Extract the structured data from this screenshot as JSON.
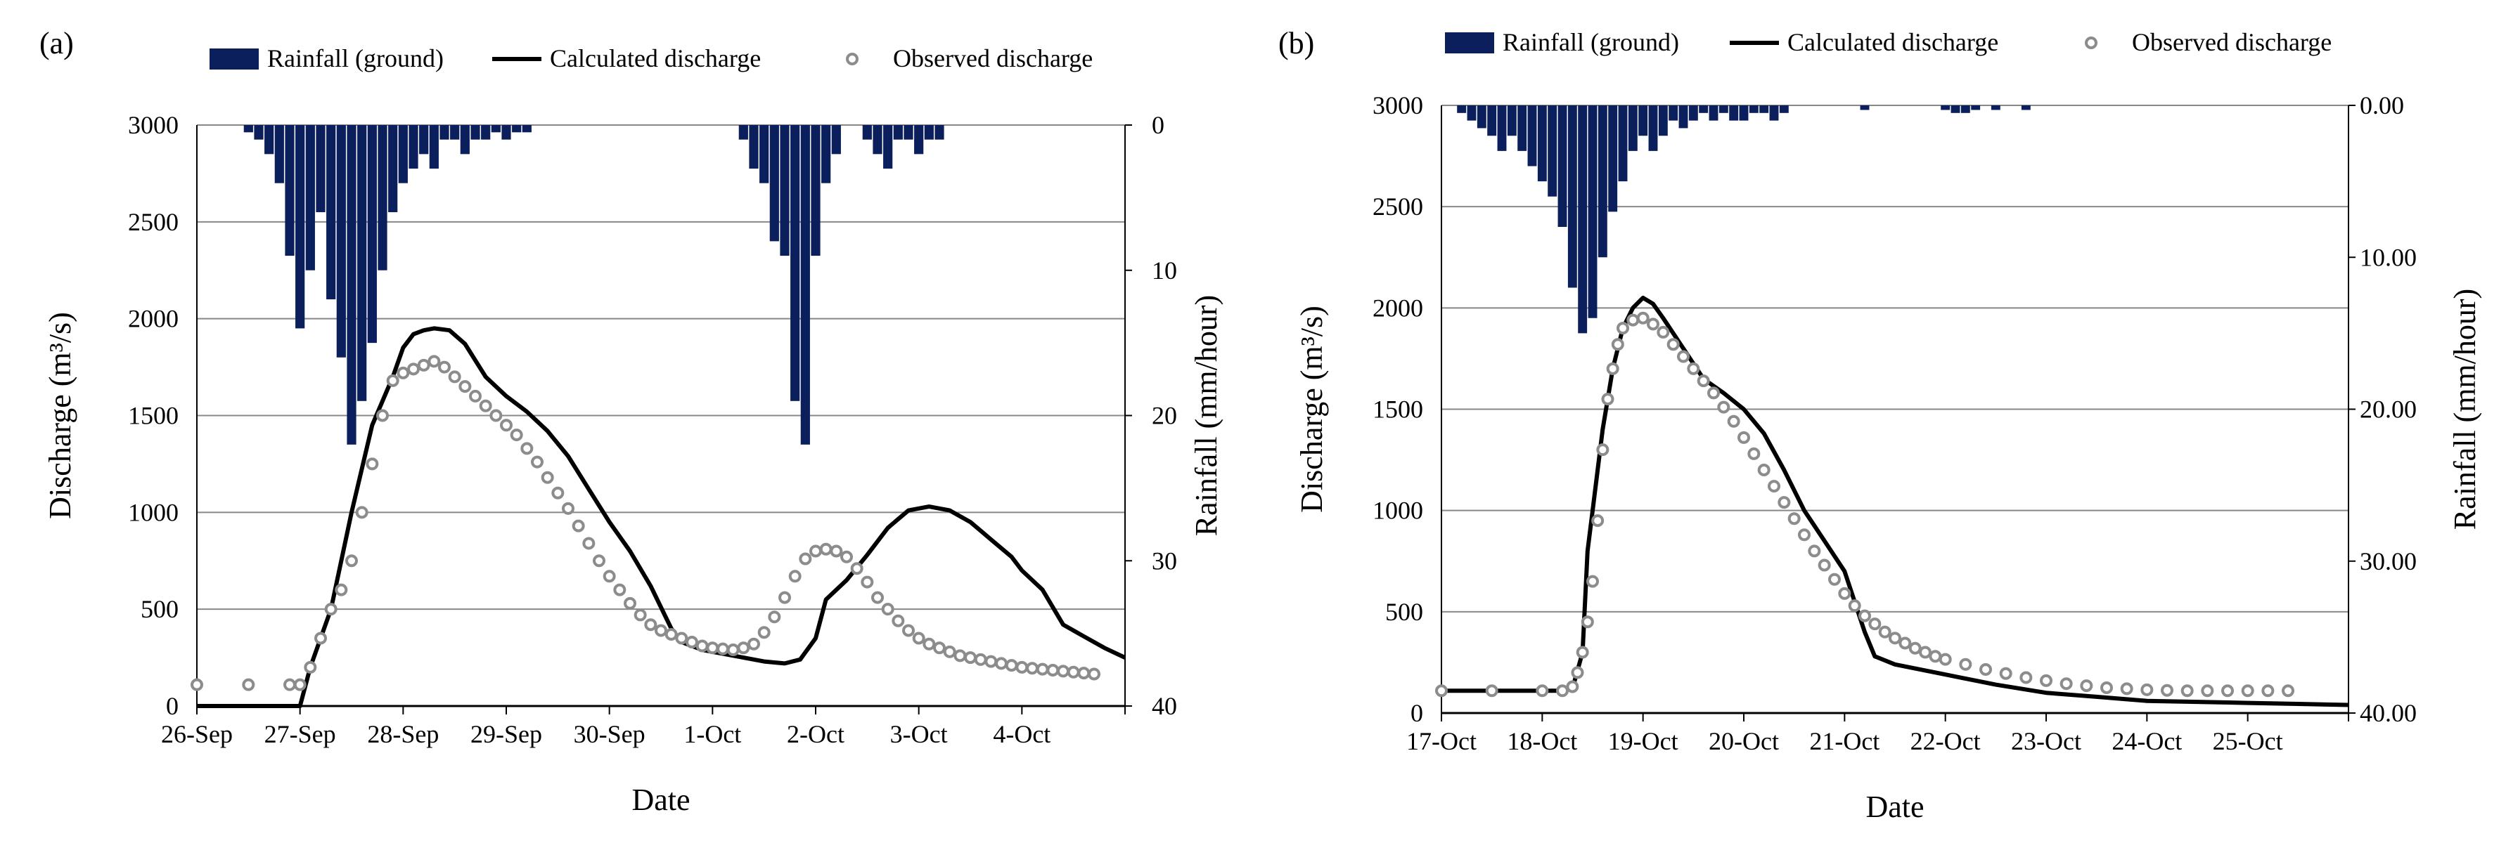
{
  "chart_data": [
    {
      "panel_label": "(a)",
      "type": "line",
      "xlabel": "Date",
      "ylabel": "Discharge (m³/s)",
      "y2label": "Rainfall (mm/hour)",
      "x_unit": "days since 26-Sep 00:00",
      "xlim": [
        0,
        9
      ],
      "ylim": [
        0,
        3000
      ],
      "y_ticks": [
        "0",
        "500",
        "1000",
        "1500",
        "2000",
        "2500",
        "3000"
      ],
      "y2_ticks": [
        "0",
        "10",
        "20",
        "30",
        "40"
      ],
      "y2lim": [
        0,
        40
      ],
      "x_ticks": [
        "26-Sep",
        "27-Sep",
        "28-Sep",
        "29-Sep",
        "30-Sep",
        "1-Oct",
        "2-Oct",
        "3-Oct",
        "4-Oct"
      ],
      "legend": [
        "Rainfall (ground)",
        "Calculated discharge",
        "Observed discharge"
      ],
      "legend_position": "top",
      "grid": "horizontal",
      "colors": {
        "rainfall": "#0b1f5c",
        "calculated": "#000000",
        "observed": "#8c8c8c"
      },
      "series": [
        {
          "name": "Calculated discharge",
          "x": [
            0,
            0.9,
            1.0,
            1.1,
            1.3,
            1.5,
            1.7,
            1.9,
            2.0,
            2.1,
            2.2,
            2.3,
            2.45,
            2.6,
            2.8,
            3.0,
            3.2,
            3.4,
            3.6,
            3.8,
            4.0,
            4.2,
            4.4,
            4.6,
            4.7,
            4.9,
            5.1,
            5.3,
            5.5,
            5.7,
            5.85,
            6.0,
            6.1,
            6.3,
            6.5,
            6.7,
            6.9,
            7.1,
            7.3,
            7.5,
            7.7,
            7.9,
            8.0,
            8.2,
            8.4,
            8.6,
            8.8,
            9.0
          ],
          "y": [
            0,
            0,
            0,
            200,
            500,
            1000,
            1450,
            1700,
            1850,
            1920,
            1940,
            1950,
            1940,
            1870,
            1700,
            1600,
            1520,
            1420,
            1290,
            1120,
            950,
            800,
            620,
            400,
            330,
            290,
            270,
            250,
            230,
            220,
            240,
            350,
            550,
            650,
            780,
            920,
            1010,
            1030,
            1010,
            950,
            860,
            770,
            700,
            600,
            420,
            360,
            300,
            250
          ]
        },
        {
          "name": "Observed discharge",
          "x": [
            0,
            0.5,
            0.9,
            1.0,
            1.1,
            1.2,
            1.3,
            1.4,
            1.5,
            1.6,
            1.7,
            1.8,
            1.9,
            2.0,
            2.1,
            2.2,
            2.3,
            2.4,
            2.5,
            2.6,
            2.7,
            2.8,
            2.9,
            3.0,
            3.1,
            3.2,
            3.3,
            3.4,
            3.5,
            3.6,
            3.7,
            3.8,
            3.9,
            4.0,
            4.1,
            4.2,
            4.3,
            4.4,
            4.5,
            4.6,
            4.7,
            4.8,
            4.9,
            5.0,
            5.1,
            5.2,
            5.3,
            5.4,
            5.5,
            5.6,
            5.7,
            5.8,
            5.9,
            6.0,
            6.1,
            6.2,
            6.3,
            6.4,
            6.5,
            6.6,
            6.7,
            6.8,
            6.9,
            7.0,
            7.1,
            7.2,
            7.3,
            7.4,
            7.5,
            7.6,
            7.7,
            7.8,
            7.9,
            8.0,
            8.1,
            8.2,
            8.3,
            8.4,
            8.5,
            8.6,
            8.7
          ],
          "y": [
            110,
            110,
            110,
            110,
            200,
            350,
            500,
            600,
            750,
            1000,
            1250,
            1500,
            1680,
            1720,
            1740,
            1760,
            1780,
            1750,
            1700,
            1650,
            1600,
            1550,
            1500,
            1450,
            1400,
            1330,
            1260,
            1180,
            1100,
            1020,
            930,
            840,
            750,
            670,
            600,
            530,
            470,
            420,
            390,
            370,
            350,
            330,
            310,
            300,
            295,
            290,
            300,
            320,
            380,
            460,
            560,
            670,
            760,
            800,
            810,
            800,
            770,
            710,
            640,
            560,
            500,
            440,
            390,
            350,
            320,
            300,
            280,
            260,
            250,
            240,
            230,
            220,
            210,
            200,
            195,
            190,
            185,
            180,
            175,
            170,
            165
          ]
        },
        {
          "name": "Rainfall (ground)",
          "unit": "mm/hour",
          "x": [
            0.5,
            0.6,
            0.7,
            0.8,
            0.9,
            1.0,
            1.1,
            1.2,
            1.3,
            1.4,
            1.5,
            1.6,
            1.7,
            1.8,
            1.9,
            2.0,
            2.1,
            2.2,
            2.3,
            2.4,
            2.5,
            2.6,
            2.7,
            2.8,
            2.9,
            3.0,
            3.1,
            3.2,
            5.3,
            5.4,
            5.5,
            5.6,
            5.7,
            5.8,
            5.9,
            6.0,
            6.1,
            6.2,
            6.5,
            6.6,
            6.7,
            6.8,
            6.9,
            7.0,
            7.1,
            7.2
          ],
          "values": [
            0.5,
            1,
            2,
            4,
            9,
            14,
            10,
            6,
            12,
            16,
            22,
            19,
            15,
            10,
            6,
            4,
            3,
            2,
            3,
            1,
            1,
            2,
            1,
            1,
            0.5,
            1,
            0.5,
            0.5,
            1,
            3,
            4,
            8,
            9,
            19,
            22,
            9,
            4,
            2,
            1,
            2,
            3,
            1,
            1,
            2,
            1,
            1
          ]
        }
      ]
    },
    {
      "panel_label": "(b)",
      "type": "line",
      "xlabel": "Date",
      "ylabel": "Discharge (m³/s)",
      "y2label": "Rainfall (mm/hour)",
      "x_unit": "days since 17-Oct 00:00",
      "xlim": [
        0,
        9
      ],
      "ylim": [
        0,
        3000
      ],
      "y_ticks": [
        "0",
        "500",
        "1000",
        "1500",
        "2000",
        "2500",
        "3000"
      ],
      "y2_ticks": [
        "0.00",
        "10.00",
        "20.00",
        "30.00",
        "40.00"
      ],
      "y2lim": [
        0,
        40
      ],
      "x_ticks": [
        "17-Oct",
        "18-Oct",
        "19-Oct",
        "20-Oct",
        "21-Oct",
        "22-Oct",
        "23-Oct",
        "24-Oct",
        "25-Oct"
      ],
      "legend": [
        "Rainfall (ground)",
        "Calculated discharge",
        "Observed discharge"
      ],
      "legend_position": "top",
      "grid": "horizontal",
      "colors": {
        "rainfall": "#0b1f5c",
        "calculated": "#000000",
        "observed": "#8c8c8c"
      },
      "series": [
        {
          "name": "Calculated discharge",
          "x": [
            0,
            1.2,
            1.3,
            1.4,
            1.45,
            1.5,
            1.6,
            1.7,
            1.8,
            1.9,
            2.0,
            2.1,
            2.2,
            2.4,
            2.6,
            2.8,
            3.0,
            3.2,
            3.4,
            3.6,
            3.8,
            4.0,
            4.2,
            4.3,
            4.5,
            4.7,
            5.0,
            5.5,
            6.0,
            6.5,
            7.0,
            7.5,
            8.0,
            8.5,
            9.0
          ],
          "y": [
            110,
            110,
            120,
            300,
            800,
            1000,
            1400,
            1700,
            1900,
            2000,
            2050,
            2020,
            1950,
            1800,
            1650,
            1580,
            1500,
            1380,
            1200,
            1000,
            850,
            700,
            400,
            280,
            240,
            220,
            190,
            140,
            100,
            80,
            60,
            55,
            50,
            45,
            40
          ]
        },
        {
          "name": "Observed discharge",
          "x": [
            0,
            0.5,
            1.0,
            1.2,
            1.3,
            1.35,
            1.4,
            1.45,
            1.5,
            1.55,
            1.6,
            1.65,
            1.7,
            1.75,
            1.8,
            1.9,
            2.0,
            2.1,
            2.2,
            2.3,
            2.4,
            2.5,
            2.6,
            2.7,
            2.8,
            2.9,
            3.0,
            3.1,
            3.2,
            3.3,
            3.4,
            3.5,
            3.6,
            3.7,
            3.8,
            3.9,
            4.0,
            4.1,
            4.2,
            4.3,
            4.4,
            4.5,
            4.6,
            4.7,
            4.8,
            4.9,
            5.0,
            5.2,
            5.4,
            5.6,
            5.8,
            6.0,
            6.2,
            6.4,
            6.6,
            6.8,
            7.0,
            7.2,
            7.4,
            7.6,
            7.8,
            8.0,
            8.2,
            8.4
          ],
          "y": [
            110,
            110,
            110,
            110,
            130,
            200,
            300,
            450,
            650,
            950,
            1300,
            1550,
            1700,
            1820,
            1900,
            1940,
            1950,
            1920,
            1880,
            1820,
            1760,
            1700,
            1640,
            1580,
            1510,
            1440,
            1360,
            1280,
            1200,
            1120,
            1040,
            960,
            880,
            800,
            730,
            660,
            590,
            530,
            480,
            440,
            400,
            370,
            345,
            320,
            300,
            280,
            265,
            240,
            215,
            195,
            175,
            160,
            145,
            135,
            125,
            120,
            115,
            112,
            110,
            110,
            110,
            110,
            110,
            110
          ]
        },
        {
          "name": "Rainfall (ground)",
          "unit": "mm/hour",
          "x": [
            0.2,
            0.3,
            0.4,
            0.5,
            0.6,
            0.7,
            0.8,
            0.9,
            1.0,
            1.1,
            1.2,
            1.3,
            1.4,
            1.5,
            1.6,
            1.7,
            1.8,
            1.9,
            2.0,
            2.1,
            2.2,
            2.3,
            2.4,
            2.5,
            2.6,
            2.7,
            2.8,
            2.9,
            3.0,
            3.1,
            3.2,
            3.3,
            3.4,
            4.2,
            5.0,
            5.1,
            5.2,
            5.3,
            5.5,
            5.8
          ],
          "values": [
            0.5,
            1,
            1.5,
            2,
            3,
            2,
            3,
            4,
            5,
            6,
            8,
            12,
            15,
            14,
            10,
            7,
            5,
            3,
            2,
            3,
            2,
            1,
            1.5,
            1,
            0.5,
            1,
            0.5,
            1,
            1,
            0.5,
            0.5,
            1,
            0.5,
            0.3,
            0.3,
            0.5,
            0.5,
            0.3,
            0.3,
            0.3
          ]
        }
      ]
    }
  ]
}
